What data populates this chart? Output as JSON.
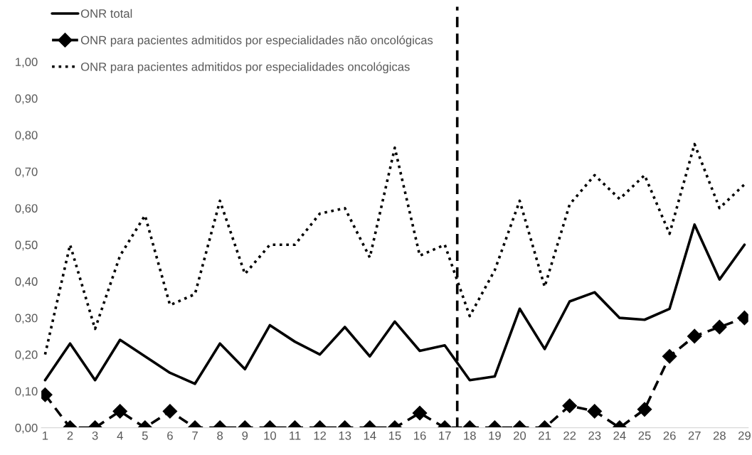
{
  "chart_data": {
    "type": "line",
    "categories": [
      "1",
      "2",
      "3",
      "4",
      "5",
      "6",
      "7",
      "8",
      "9",
      "10",
      "11",
      "12",
      "13",
      "14",
      "15",
      "16",
      "17",
      "18",
      "19",
      "20",
      "21",
      "22",
      "23",
      "24",
      "25",
      "26",
      "27",
      "28",
      "29"
    ],
    "series": [
      {
        "name": "ONR total",
        "color": "#000000",
        "line_style": "solid",
        "marker": "none",
        "values": [
          0.13,
          0.23,
          0.13,
          0.24,
          0.195,
          0.15,
          0.12,
          0.23,
          0.16,
          0.28,
          0.235,
          0.2,
          0.275,
          0.195,
          0.29,
          0.21,
          0.225,
          0.13,
          0.14,
          0.325,
          0.215,
          0.345,
          0.37,
          0.3,
          0.295,
          0.325,
          0.555,
          0.405,
          0.5
        ]
      },
      {
        "name": "ONR para pacientes admitidos por especialidades não oncológicas",
        "color": "#000000",
        "line_style": "dashed",
        "marker": "diamond",
        "values": [
          0.09,
          0,
          0,
          0.045,
          0,
          0.045,
          0,
          0,
          0,
          0,
          0,
          0,
          0,
          0,
          0,
          0.04,
          0,
          0,
          0,
          0,
          0,
          0.06,
          0.045,
          0,
          0.05,
          0.195,
          0.25,
          0.275,
          0.3
        ]
      },
      {
        "name": "ONR para pacientes admitidos por especialidades oncológicas",
        "color": "#000000",
        "line_style": "dotted",
        "marker": "none",
        "values": [
          0.2,
          0.5,
          0.27,
          0.47,
          0.58,
          0.335,
          0.365,
          0.62,
          0.42,
          0.5,
          0.5,
          0.585,
          0.6,
          0.465,
          0.765,
          0.47,
          0.5,
          0.305,
          0.43,
          0.62,
          0.385,
          0.61,
          0.69,
          0.625,
          0.69,
          0.53,
          0.775,
          0.6,
          0.665
        ]
      }
    ],
    "ylim": [
      0,
      1.15
    ],
    "yticks": [
      {
        "value": 0,
        "label": "0,00"
      },
      {
        "value": 0.1,
        "label": "0,10"
      },
      {
        "value": 0.2,
        "label": "0,20"
      },
      {
        "value": 0.3,
        "label": "0,30"
      },
      {
        "value": 0.4,
        "label": "0,40"
      },
      {
        "value": 0.5,
        "label": "0,50"
      },
      {
        "value": 0.6,
        "label": "0,60"
      },
      {
        "value": 0.7,
        "label": "0,70"
      },
      {
        "value": 0.8,
        "label": "0,80"
      },
      {
        "value": 0.9,
        "label": "0,90"
      },
      {
        "value": 1.0,
        "label": "1,00"
      }
    ],
    "grid": false,
    "legend": "top left"
  }
}
